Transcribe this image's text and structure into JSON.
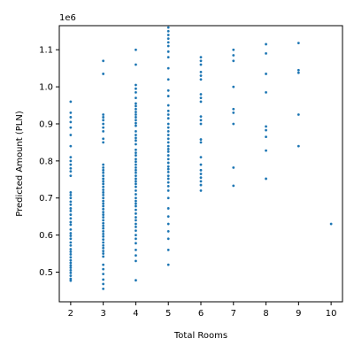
{
  "chart_data": {
    "type": "scatter",
    "title": "",
    "xlabel": "Total Rooms",
    "ylabel": "Predicted Amount (PLN)",
    "y_offset_text": "1e6",
    "xlim": [
      1.65,
      10.35
    ],
    "ylim": [
      420000,
      1165000
    ],
    "xticks": [
      2,
      3,
      4,
      5,
      6,
      7,
      8,
      9,
      10
    ],
    "yticks": [
      500000,
      600000,
      700000,
      800000,
      900000,
      1000000,
      1100000
    ],
    "ytick_labels": [
      "0.5",
      "0.6",
      "0.7",
      "0.8",
      "0.9",
      "1.0",
      "1.1"
    ],
    "grid": false,
    "marker_color": "#1f77b4",
    "series": [
      {
        "points": [
          [
            2,
            960000
          ],
          [
            2,
            930000
          ],
          [
            2,
            918000
          ],
          [
            2,
            905000
          ],
          [
            2,
            890000
          ],
          [
            2,
            870000
          ],
          [
            2,
            840000
          ],
          [
            2,
            810000
          ],
          [
            2,
            800000
          ],
          [
            2,
            790000
          ],
          [
            2,
            780000
          ],
          [
            2,
            772000
          ],
          [
            2,
            760000
          ],
          [
            2,
            715000
          ],
          [
            2,
            708000
          ],
          [
            2,
            700000
          ],
          [
            2,
            690000
          ],
          [
            2,
            682000
          ],
          [
            2,
            672000
          ],
          [
            2,
            665000
          ],
          [
            2,
            655000
          ],
          [
            2,
            645000
          ],
          [
            2,
            635000
          ],
          [
            2,
            628000
          ],
          [
            2,
            615000
          ],
          [
            2,
            605000
          ],
          [
            2,
            598000
          ],
          [
            2,
            590000
          ],
          [
            2,
            580000
          ],
          [
            2,
            572000
          ],
          [
            2,
            562000
          ],
          [
            2,
            555000
          ],
          [
            2,
            548000
          ],
          [
            2,
            540000
          ],
          [
            2,
            532000
          ],
          [
            2,
            525000
          ],
          [
            2,
            518000
          ],
          [
            2,
            512000
          ],
          [
            2,
            505000
          ],
          [
            2,
            498000
          ],
          [
            2,
            490000
          ],
          [
            2,
            482000
          ],
          [
            2,
            477000
          ],
          [
            3,
            1070000
          ],
          [
            3,
            1035000
          ],
          [
            3,
            925000
          ],
          [
            3,
            918000
          ],
          [
            3,
            910000
          ],
          [
            3,
            900000
          ],
          [
            3,
            890000
          ],
          [
            3,
            880000
          ],
          [
            3,
            860000
          ],
          [
            3,
            850000
          ],
          [
            3,
            790000
          ],
          [
            3,
            782000
          ],
          [
            3,
            775000
          ],
          [
            3,
            768000
          ],
          [
            3,
            760000
          ],
          [
            3,
            752000
          ],
          [
            3,
            745000
          ],
          [
            3,
            738000
          ],
          [
            3,
            730000
          ],
          [
            3,
            722000
          ],
          [
            3,
            715000
          ],
          [
            3,
            708000
          ],
          [
            3,
            700000
          ],
          [
            3,
            692000
          ],
          [
            3,
            685000
          ],
          [
            3,
            678000
          ],
          [
            3,
            670000
          ],
          [
            3,
            662000
          ],
          [
            3,
            655000
          ],
          [
            3,
            648000
          ],
          [
            3,
            640000
          ],
          [
            3,
            632000
          ],
          [
            3,
            625000
          ],
          [
            3,
            618000
          ],
          [
            3,
            610000
          ],
          [
            3,
            603000
          ],
          [
            3,
            596000
          ],
          [
            3,
            588000
          ],
          [
            3,
            580000
          ],
          [
            3,
            572000
          ],
          [
            3,
            565000
          ],
          [
            3,
            557000
          ],
          [
            3,
            550000
          ],
          [
            3,
            542000
          ],
          [
            3,
            520000
          ],
          [
            3,
            508000
          ],
          [
            3,
            495000
          ],
          [
            3,
            480000
          ],
          [
            3,
            468000
          ],
          [
            3,
            455000
          ],
          [
            4,
            1100000
          ],
          [
            4,
            1060000
          ],
          [
            4,
            1005000
          ],
          [
            4,
            995000
          ],
          [
            4,
            985000
          ],
          [
            4,
            970000
          ],
          [
            4,
            955000
          ],
          [
            4,
            948000
          ],
          [
            4,
            940000
          ],
          [
            4,
            932000
          ],
          [
            4,
            925000
          ],
          [
            4,
            918000
          ],
          [
            4,
            910000
          ],
          [
            4,
            902000
          ],
          [
            4,
            895000
          ],
          [
            4,
            880000
          ],
          [
            4,
            870000
          ],
          [
            4,
            862000
          ],
          [
            4,
            855000
          ],
          [
            4,
            845000
          ],
          [
            4,
            830000
          ],
          [
            4,
            822000
          ],
          [
            4,
            815000
          ],
          [
            4,
            805000
          ],
          [
            4,
            798000
          ],
          [
            4,
            790000
          ],
          [
            4,
            782000
          ],
          [
            4,
            775000
          ],
          [
            4,
            768000
          ],
          [
            4,
            760000
          ],
          [
            4,
            752000
          ],
          [
            4,
            745000
          ],
          [
            4,
            738000
          ],
          [
            4,
            730000
          ],
          [
            4,
            720000
          ],
          [
            4,
            710000
          ],
          [
            4,
            700000
          ],
          [
            4,
            692000
          ],
          [
            4,
            685000
          ],
          [
            4,
            678000
          ],
          [
            4,
            668000
          ],
          [
            4,
            658000
          ],
          [
            4,
            648000
          ],
          [
            4,
            640000
          ],
          [
            4,
            630000
          ],
          [
            4,
            622000
          ],
          [
            4,
            612000
          ],
          [
            4,
            600000
          ],
          [
            4,
            590000
          ],
          [
            4,
            578000
          ],
          [
            4,
            560000
          ],
          [
            4,
            545000
          ],
          [
            4,
            530000
          ],
          [
            4,
            478000
          ],
          [
            5,
            1160000
          ],
          [
            5,
            1150000
          ],
          [
            5,
            1140000
          ],
          [
            5,
            1130000
          ],
          [
            5,
            1120000
          ],
          [
            5,
            1110000
          ],
          [
            5,
            1095000
          ],
          [
            5,
            1080000
          ],
          [
            5,
            1050000
          ],
          [
            5,
            1020000
          ],
          [
            5,
            990000
          ],
          [
            5,
            975000
          ],
          [
            5,
            950000
          ],
          [
            5,
            935000
          ],
          [
            5,
            925000
          ],
          [
            5,
            915000
          ],
          [
            5,
            900000
          ],
          [
            5,
            890000
          ],
          [
            5,
            880000
          ],
          [
            5,
            870000
          ],
          [
            5,
            860000
          ],
          [
            5,
            850000
          ],
          [
            5,
            840000
          ],
          [
            5,
            832000
          ],
          [
            5,
            825000
          ],
          [
            5,
            815000
          ],
          [
            5,
            805000
          ],
          [
            5,
            795000
          ],
          [
            5,
            785000
          ],
          [
            5,
            778000
          ],
          [
            5,
            770000
          ],
          [
            5,
            760000
          ],
          [
            5,
            752000
          ],
          [
            5,
            742000
          ],
          [
            5,
            732000
          ],
          [
            5,
            720000
          ],
          [
            5,
            700000
          ],
          [
            5,
            672000
          ],
          [
            5,
            650000
          ],
          [
            5,
            630000
          ],
          [
            5,
            610000
          ],
          [
            5,
            590000
          ],
          [
            5,
            560000
          ],
          [
            5,
            520000
          ],
          [
            6,
            1080000
          ],
          [
            6,
            1070000
          ],
          [
            6,
            1060000
          ],
          [
            6,
            1040000
          ],
          [
            6,
            1030000
          ],
          [
            6,
            1020000
          ],
          [
            6,
            980000
          ],
          [
            6,
            970000
          ],
          [
            6,
            960000
          ],
          [
            6,
            920000
          ],
          [
            6,
            910000
          ],
          [
            6,
            900000
          ],
          [
            6,
            858000
          ],
          [
            6,
            850000
          ],
          [
            6,
            810000
          ],
          [
            6,
            790000
          ],
          [
            6,
            775000
          ],
          [
            6,
            765000
          ],
          [
            6,
            755000
          ],
          [
            6,
            745000
          ],
          [
            6,
            735000
          ],
          [
            6,
            720000
          ],
          [
            7,
            1100000
          ],
          [
            7,
            1085000
          ],
          [
            7,
            1070000
          ],
          [
            7,
            1000000
          ],
          [
            7,
            940000
          ],
          [
            7,
            930000
          ],
          [
            7,
            900000
          ],
          [
            7,
            782000
          ],
          [
            7,
            733000
          ],
          [
            8,
            1115000
          ],
          [
            8,
            1090000
          ],
          [
            8,
            1035000
          ],
          [
            8,
            985000
          ],
          [
            8,
            893000
          ],
          [
            8,
            883000
          ],
          [
            8,
            865000
          ],
          [
            8,
            828000
          ],
          [
            8,
            752000
          ],
          [
            9,
            1118000
          ],
          [
            9,
            1045000
          ],
          [
            9,
            1038000
          ],
          [
            9,
            925000
          ],
          [
            9,
            840000
          ],
          [
            10,
            630000
          ]
        ]
      }
    ]
  }
}
